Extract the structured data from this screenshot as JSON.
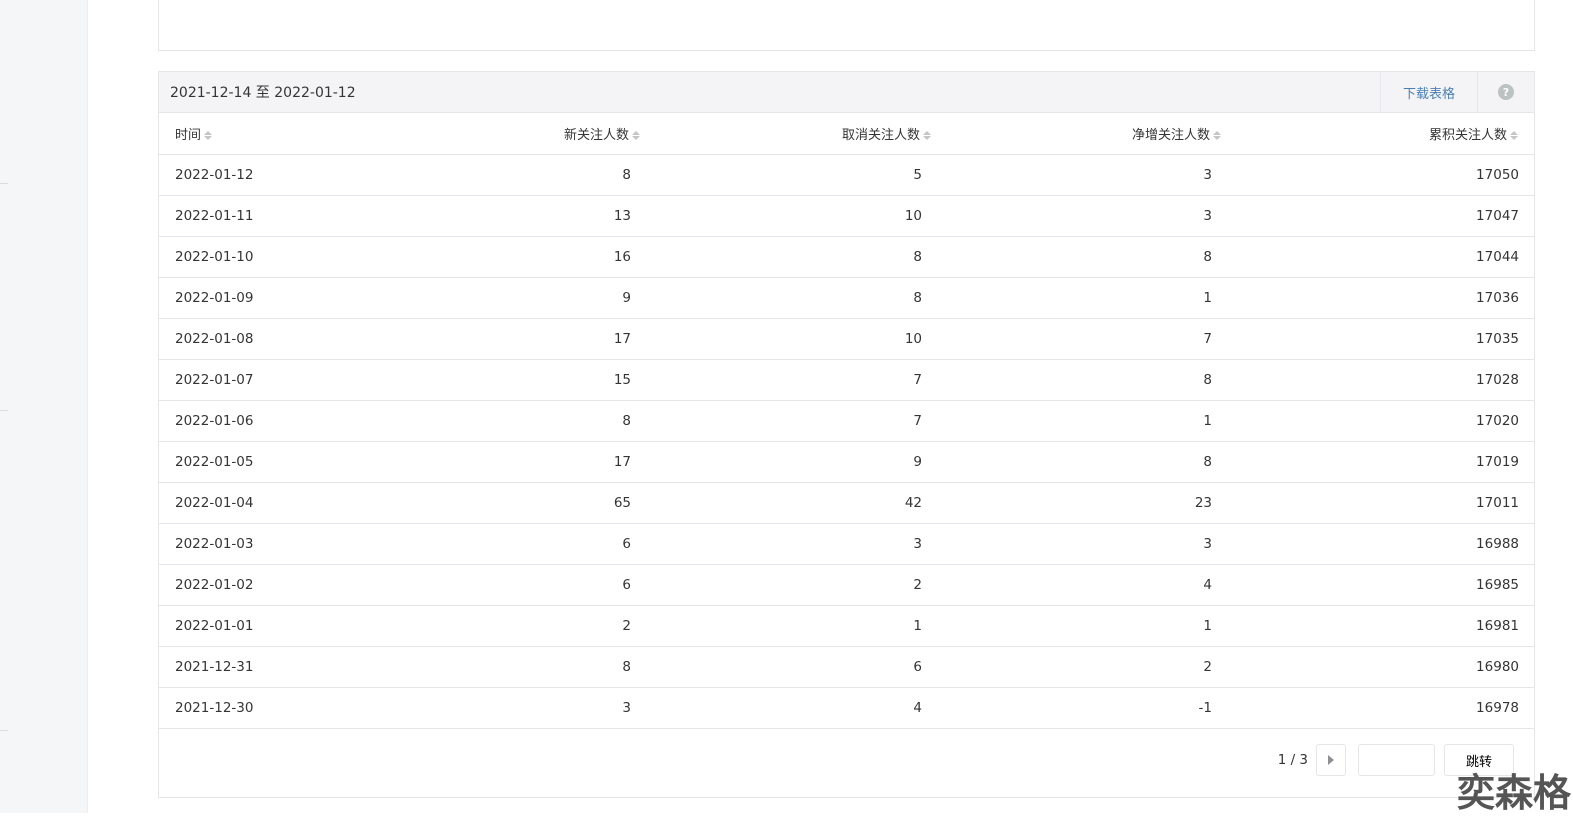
{
  "table_panel": {
    "date_range": "2021-12-14 至 2022-01-12",
    "download_label": "下载表格",
    "help_icon": "question-circle-icon",
    "columns": [
      "时间",
      "新关注人数",
      "取消关注人数",
      "净增关注人数",
      "累积关注人数"
    ],
    "rows": [
      [
        "2022-01-12",
        "8",
        "5",
        "3",
        "17050"
      ],
      [
        "2022-01-11",
        "13",
        "10",
        "3",
        "17047"
      ],
      [
        "2022-01-10",
        "16",
        "8",
        "8",
        "17044"
      ],
      [
        "2022-01-09",
        "9",
        "8",
        "1",
        "17036"
      ],
      [
        "2022-01-08",
        "17",
        "10",
        "7",
        "17035"
      ],
      [
        "2022-01-07",
        "15",
        "7",
        "8",
        "17028"
      ],
      [
        "2022-01-06",
        "8",
        "7",
        "1",
        "17020"
      ],
      [
        "2022-01-05",
        "17",
        "9",
        "8",
        "17019"
      ],
      [
        "2022-01-04",
        "65",
        "42",
        "23",
        "17011"
      ],
      [
        "2022-01-03",
        "6",
        "3",
        "3",
        "16988"
      ],
      [
        "2022-01-02",
        "6",
        "2",
        "4",
        "16985"
      ],
      [
        "2022-01-01",
        "2",
        "1",
        "1",
        "16981"
      ],
      [
        "2021-12-31",
        "8",
        "6",
        "2",
        "16980"
      ],
      [
        "2021-12-30",
        "3",
        "4",
        "-1",
        "16978"
      ]
    ],
    "pagination": {
      "page_text": "1 / 3",
      "jump_input": "",
      "jump_label": "跳转"
    }
  },
  "watermark": "奕森格"
}
